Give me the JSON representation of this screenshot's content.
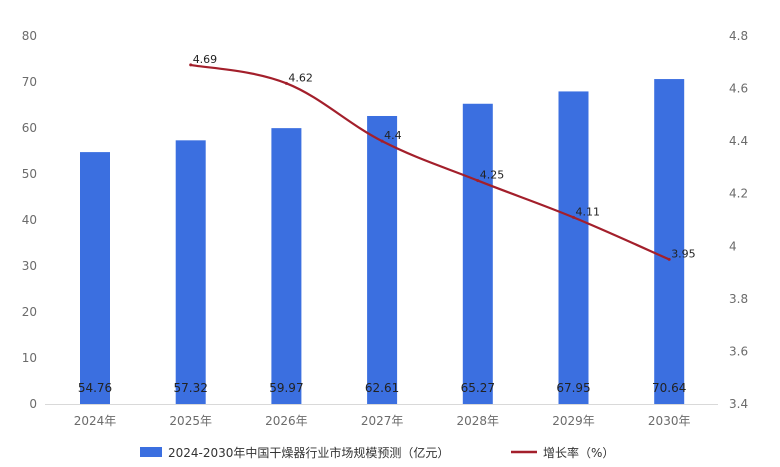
{
  "chart_data": {
    "type": "bar",
    "categories": [
      "2024年",
      "2025年",
      "2026年",
      "2027年",
      "2028年",
      "2029年",
      "2030年"
    ],
    "series": [
      {
        "name": "2024-2030年中国干燥器行业市场规模预测（亿元）",
        "type": "bar",
        "axis": "left",
        "color": "#3B6FE0",
        "values": [
          54.76,
          57.32,
          59.97,
          62.61,
          65.27,
          67.95,
          70.64
        ]
      },
      {
        "name": "增长率（%）",
        "type": "line",
        "axis": "right",
        "color": "#A31F2B",
        "values": [
          null,
          4.69,
          4.62,
          4.4,
          4.25,
          4.11,
          3.95
        ]
      }
    ],
    "y_left": {
      "ylim": [
        0,
        80
      ],
      "ticks": [
        "0",
        "10",
        "20",
        "30",
        "40",
        "50",
        "60",
        "70",
        "80"
      ]
    },
    "y_right": {
      "ylim": [
        3.4,
        4.8
      ],
      "ticks": [
        "3.4",
        "3.6",
        "3.8",
        "4",
        "4.2",
        "4.4",
        "4.6",
        "4.8"
      ]
    },
    "grid": false,
    "legend_position": "bottom"
  }
}
